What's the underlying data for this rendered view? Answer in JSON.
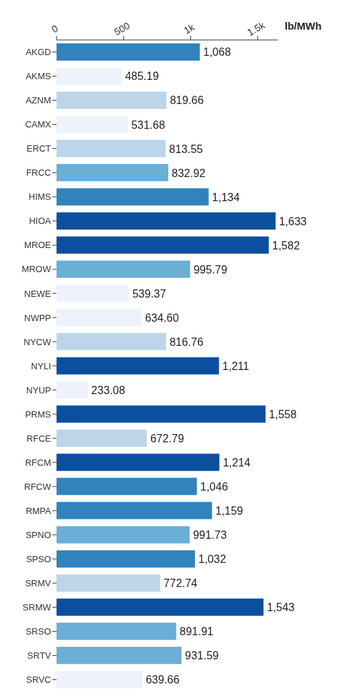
{
  "chart_data": {
    "type": "bar",
    "orientation": "horizontal",
    "xlabel": "lb/MWh",
    "categories": [
      "AKGD",
      "AKMS",
      "AZNM",
      "CAMX",
      "ERCT",
      "FRCC",
      "HIMS",
      "HIOA",
      "MROE",
      "MROW",
      "NEWE",
      "NWPP",
      "NYCW",
      "NYLI",
      "NYUP",
      "PRMS",
      "RFCE",
      "RFCM",
      "RFCW",
      "RMPA",
      "SPNO",
      "SPSO",
      "SRMV",
      "SRMW",
      "SRSO",
      "SRTV",
      "SRVC"
    ],
    "values": [
      1068,
      485.19,
      819.66,
      531.68,
      813.55,
      832.92,
      1134,
      1633,
      1582,
      995.79,
      539.37,
      634.6,
      816.76,
      1211,
      233.08,
      1558,
      672.79,
      1214,
      1046,
      1159,
      991.73,
      1032,
      772.74,
      1543,
      891.91,
      931.59,
      639.66
    ],
    "value_labels": [
      "1,068",
      "485.19",
      "819.66",
      "531.68",
      "813.55",
      "832.92",
      "1,134",
      "1,633",
      "1,582",
      "995.79",
      "539.37",
      "634.60",
      "816.76",
      "1,211",
      "233.08",
      "1,558",
      "672.79",
      "1,214",
      "1,046",
      "1,159",
      "991.73",
      "1,032",
      "772.74",
      "1,543",
      "891.91",
      "931.59",
      "639.66"
    ],
    "colors": [
      "#3182bd",
      "#eef2fb",
      "#bcd5e8",
      "#eef2fb",
      "#bcd5e8",
      "#6baed6",
      "#3182bd",
      "#0b4f9e",
      "#0b4f9e",
      "#6baed6",
      "#eef2fb",
      "#eef2fb",
      "#bcd5e8",
      "#0b4f9e",
      "#eef2fb",
      "#0b4f9e",
      "#bcd5e8",
      "#0b4f9e",
      "#3182bd",
      "#3182bd",
      "#6baed6",
      "#3182bd",
      "#bcd5e8",
      "#0b4f9e",
      "#6baed6",
      "#6baed6",
      "#eef2fb"
    ],
    "xlim": [
      0,
      1650
    ],
    "xticks": [
      0,
      500,
      {
        "value": 1000,
        "label": "1k"
      },
      {
        "value": 1500,
        "label": "1.5k"
      }
    ],
    "grid": false,
    "legend": false
  }
}
